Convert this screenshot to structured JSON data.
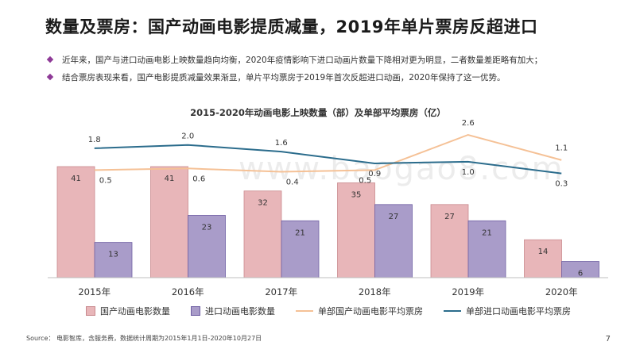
{
  "page": {
    "title": "数量及票房：国产动画电影提质减量，2019年单片票房反超进口",
    "bullets": [
      "近年来，国产与进口动画电影上映数量趋向均衡，2020年疫情影响下进口动画片数量下降相对更为明显，二者数量差距略有加大；",
      "结合票房表现来看，国产电影提质减量效果渐显，单片平均票房于2019年首次反超进口动画，2020年保持了这一优势。"
    ],
    "source": "Source： 电影智库，含服务费，数据统计周期为2015年1月1日-2020年10月27日",
    "page_number": "7",
    "watermark": "www.baogao8.com",
    "accent_color": "#8e3a97"
  },
  "chart_data": {
    "type": "bar",
    "title": "2015-2020年动画电影上映数量（部）及单部平均票房（亿）",
    "categories": [
      "2015年",
      "2016年",
      "2017年",
      "2018年",
      "2019年",
      "2020年"
    ],
    "series": [
      {
        "name": "国产动画电影数量",
        "kind": "bar",
        "values": [
          41,
          41,
          32,
          35,
          27,
          14
        ],
        "fill": "#e8b6b9",
        "stroke": "#c98a8e"
      },
      {
        "name": "进口动画电影数量",
        "kind": "bar",
        "values": [
          13,
          23,
          21,
          27,
          21,
          6
        ],
        "fill": "#a99cc9",
        "stroke": "#6f5fa3"
      },
      {
        "name": "单部国产动画电影平均票房",
        "kind": "line",
        "values": [
          0.5,
          0.6,
          0.4,
          0.5,
          2.6,
          1.1
        ],
        "color": "#f5c196"
      },
      {
        "name": "单部进口动画电影平均票房",
        "kind": "line",
        "values": [
          1.8,
          2.0,
          1.6,
          0.9,
          1.0,
          0.3
        ],
        "color": "#2b6c8c"
      }
    ],
    "grid": false,
    "legend_position": "bottom"
  }
}
